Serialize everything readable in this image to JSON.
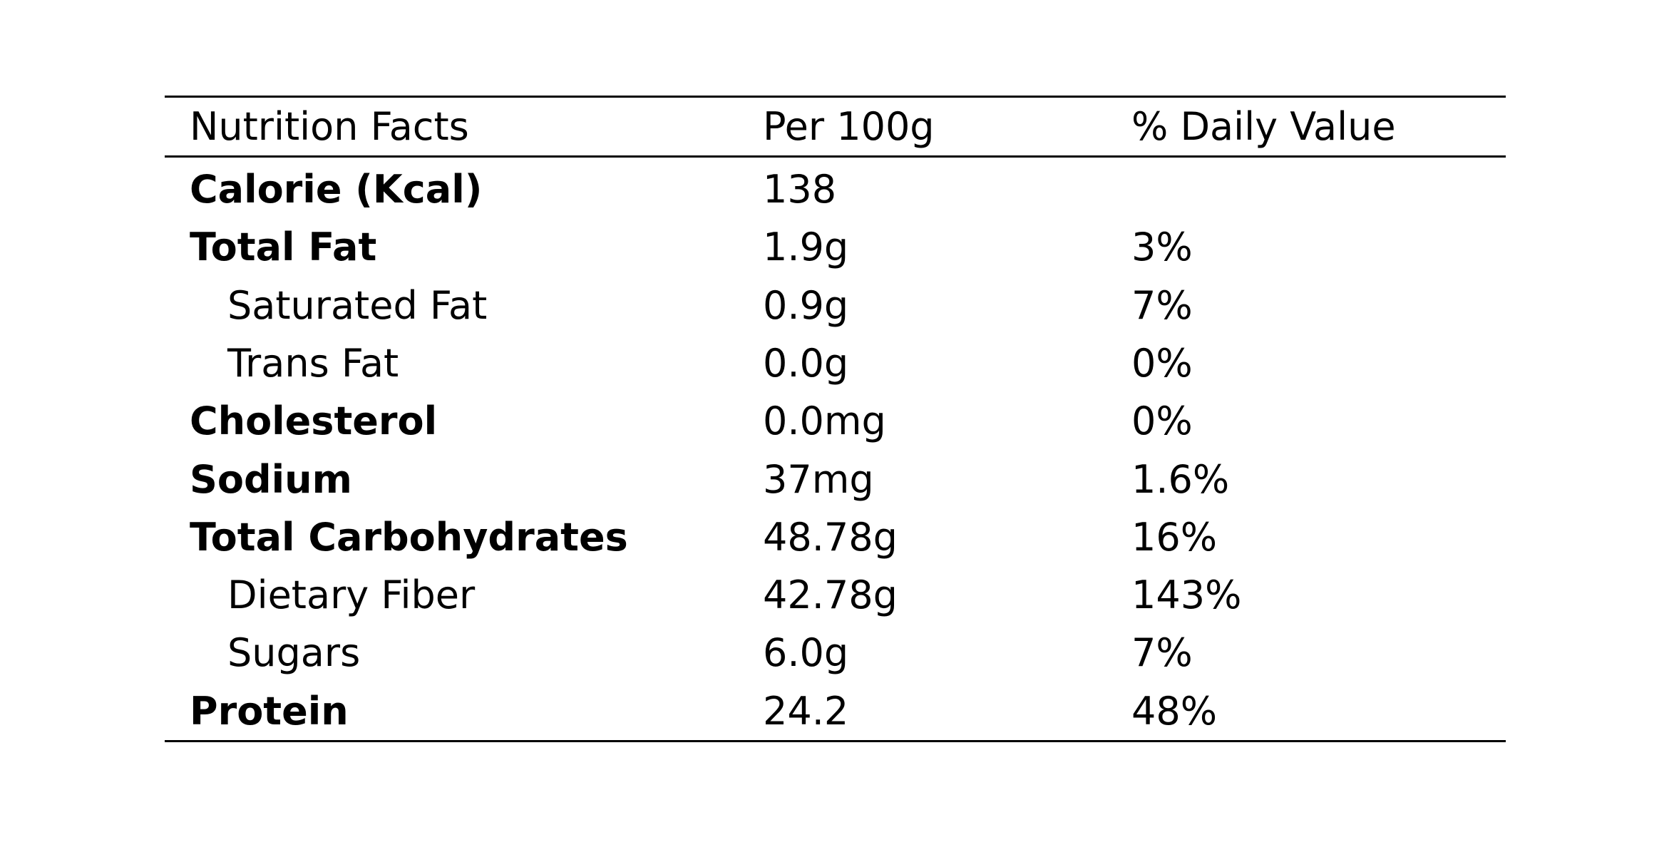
{
  "table": {
    "header": [
      "Nutrition Facts",
      "Per 100g",
      "% Daily Value"
    ],
    "rows": [
      {
        "label": "Calorie (Kcal)",
        "amount": "138"
      },
      {
        "label": "Total Fat",
        "amount": "1.9g",
        "daily_value": "3%"
      },
      {
        "label": "Saturated Fat",
        "amount": "0.9g",
        "daily_value": "7%"
      },
      {
        "label": "Trans Fat",
        "amount": "0.0g",
        "daily_value": "0%"
      },
      {
        "label": "Cholesterol",
        "amount": "0.0mg",
        "daily_value": "0%"
      },
      {
        "label": "Sodium",
        "amount": "37mg",
        "daily_value": "1.6%"
      },
      {
        "label": "Total Carbohydrates",
        "amount": "48.78g",
        "daily_value": "16%"
      },
      {
        "label": "Dietary Fiber",
        "amount": "42.78g",
        "daily_value": "143%"
      },
      {
        "label": "Sugars",
        "amount": "6.0g",
        "daily_value": "7%"
      },
      {
        "label": "Protein",
        "amount": "24.2",
        "daily_value": "48%"
      }
    ]
  }
}
